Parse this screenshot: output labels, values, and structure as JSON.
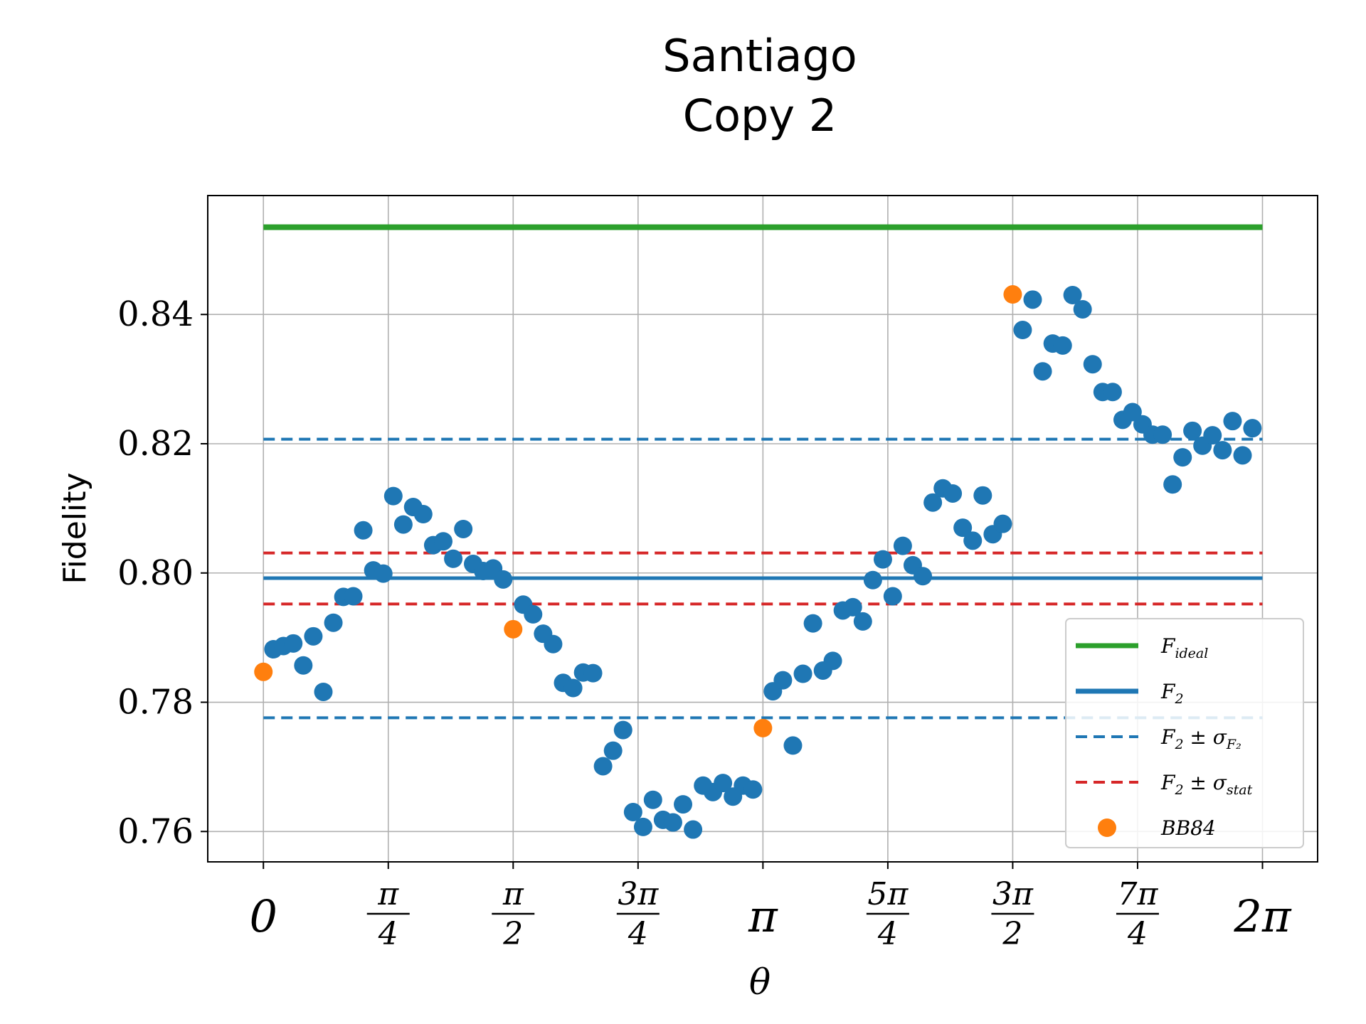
{
  "chart_data": {
    "type": "scatter",
    "title_lines": [
      "Santiago",
      "Copy 2"
    ],
    "xlabel": "θ",
    "ylabel": "Fidelity",
    "xlim": [
      -0.35,
      6.63
    ],
    "ylim": [
      0.7553,
      0.8584
    ],
    "grid": true,
    "legend_position": "lower-right",
    "y_ticks": [
      {
        "value": 0.76,
        "label": "0.76"
      },
      {
        "value": 0.78,
        "label": "0.78"
      },
      {
        "value": 0.8,
        "label": "0.80"
      },
      {
        "value": 0.82,
        "label": "0.82"
      },
      {
        "value": 0.84,
        "label": "0.84"
      }
    ],
    "x_ticks": [
      {
        "value": 0.0,
        "num": "0",
        "den": ""
      },
      {
        "value": 0.7854,
        "num": "π",
        "den": "4"
      },
      {
        "value": 1.5708,
        "num": "π",
        "den": "2"
      },
      {
        "value": 2.3562,
        "num": "3π",
        "den": "4"
      },
      {
        "value": 3.1416,
        "num": "π",
        "den": ""
      },
      {
        "value": 3.927,
        "num": "5π",
        "den": "4"
      },
      {
        "value": 4.7124,
        "num": "3π",
        "den": "2"
      },
      {
        "value": 5.4978,
        "num": "7π",
        "den": "4"
      },
      {
        "value": 6.2832,
        "num": "2π",
        "den": ""
      }
    ],
    "lines": [
      {
        "name": "F_ideal",
        "y": 0.8535,
        "x_range": [
          0,
          6.2832
        ],
        "color": "#2ca02c",
        "style": "solid"
      },
      {
        "name": "F_2",
        "y": 0.7992,
        "x_range": [
          0,
          6.2832
        ],
        "color": "#1f77b4",
        "style": "solid"
      },
      {
        "name": "F_2 ± σ_F2",
        "y": [
          0.8207,
          0.7776
        ],
        "x_range": [
          0,
          6.2832
        ],
        "color": "#1f77b4",
        "style": "dashed"
      },
      {
        "name": "F_2 ± σ_stat",
        "y": [
          0.8031,
          0.7952
        ],
        "x_range": [
          0,
          6.2832
        ],
        "color": "#d62728",
        "style": "dashed"
      }
    ],
    "series": [
      {
        "color": "#1f77b4",
        "points": [
          [
            0.063,
            0.7882
          ],
          [
            0.126,
            0.7887
          ],
          [
            0.188,
            0.7891
          ],
          [
            0.251,
            0.7857
          ],
          [
            0.314,
            0.7902
          ],
          [
            0.377,
            0.7816
          ],
          [
            0.44,
            0.7923
          ],
          [
            0.503,
            0.7963
          ],
          [
            0.565,
            0.7964
          ],
          [
            0.628,
            0.8066
          ],
          [
            0.691,
            0.8004
          ],
          [
            0.754,
            0.7999
          ],
          [
            0.817,
            0.8119
          ],
          [
            0.88,
            0.8075
          ],
          [
            0.942,
            0.8102
          ],
          [
            1.005,
            0.8091
          ],
          [
            1.068,
            0.8043
          ],
          [
            1.131,
            0.8049
          ],
          [
            1.194,
            0.8022
          ],
          [
            1.257,
            0.8068
          ],
          [
            1.319,
            0.8014
          ],
          [
            1.382,
            0.8003
          ],
          [
            1.445,
            0.8007
          ],
          [
            1.508,
            0.799
          ],
          [
            1.634,
            0.7951
          ],
          [
            1.696,
            0.7936
          ],
          [
            1.759,
            0.7906
          ],
          [
            1.822,
            0.789
          ],
          [
            1.885,
            0.783
          ],
          [
            1.948,
            0.7822
          ],
          [
            2.011,
            0.7846
          ],
          [
            2.073,
            0.7845
          ],
          [
            2.136,
            0.7701
          ],
          [
            2.199,
            0.7725
          ],
          [
            2.262,
            0.7757
          ],
          [
            2.325,
            0.763
          ],
          [
            2.388,
            0.7607
          ],
          [
            2.45,
            0.7649
          ],
          [
            2.513,
            0.7618
          ],
          [
            2.576,
            0.7614
          ],
          [
            2.639,
            0.7642
          ],
          [
            2.702,
            0.7603
          ],
          [
            2.765,
            0.7671
          ],
          [
            2.827,
            0.7661
          ],
          [
            2.89,
            0.7675
          ],
          [
            2.953,
            0.7654
          ],
          [
            3.016,
            0.7671
          ],
          [
            3.079,
            0.7665
          ],
          [
            3.204,
            0.7817
          ],
          [
            3.267,
            0.7834
          ],
          [
            3.33,
            0.7733
          ],
          [
            3.393,
            0.7844
          ],
          [
            3.456,
            0.7922
          ],
          [
            3.519,
            0.7849
          ],
          [
            3.581,
            0.7864
          ],
          [
            3.644,
            0.7942
          ],
          [
            3.707,
            0.7947
          ],
          [
            3.77,
            0.7925
          ],
          [
            3.833,
            0.7989
          ],
          [
            3.896,
            0.8021
          ],
          [
            3.958,
            0.7964
          ],
          [
            4.021,
            0.8042
          ],
          [
            4.084,
            0.8012
          ],
          [
            4.147,
            0.7995
          ],
          [
            4.21,
            0.8109
          ],
          [
            4.273,
            0.8131
          ],
          [
            4.335,
            0.8123
          ],
          [
            4.398,
            0.807
          ],
          [
            4.461,
            0.805
          ],
          [
            4.524,
            0.812
          ],
          [
            4.587,
            0.806
          ],
          [
            4.65,
            0.8076
          ],
          [
            4.775,
            0.8376
          ],
          [
            4.838,
            0.8423
          ],
          [
            4.901,
            0.8312
          ],
          [
            4.964,
            0.8355
          ],
          [
            5.027,
            0.8352
          ],
          [
            5.089,
            0.843
          ],
          [
            5.152,
            0.8408
          ],
          [
            5.215,
            0.8323
          ],
          [
            5.278,
            0.828
          ],
          [
            5.341,
            0.828
          ],
          [
            5.404,
            0.8237
          ],
          [
            5.466,
            0.8249
          ],
          [
            5.529,
            0.823
          ],
          [
            5.592,
            0.8214
          ],
          [
            5.655,
            0.8214
          ],
          [
            5.718,
            0.8137
          ],
          [
            5.781,
            0.8179
          ],
          [
            5.843,
            0.822
          ],
          [
            5.906,
            0.8197
          ],
          [
            5.969,
            0.8213
          ],
          [
            6.032,
            0.819
          ],
          [
            6.095,
            0.8235
          ],
          [
            6.158,
            0.8182
          ],
          [
            6.22,
            0.8224
          ]
        ]
      },
      {
        "name": "BB84",
        "color": "#ff7f0e",
        "points": [
          [
            0.0,
            0.7847
          ],
          [
            1.5708,
            0.7913
          ],
          [
            3.1416,
            0.776
          ],
          [
            4.7124,
            0.8431
          ]
        ]
      }
    ],
    "legend": [
      {
        "kind": "solid",
        "color": "#2ca02c",
        "base": "F",
        "sub": "ideal",
        "rest": ""
      },
      {
        "kind": "solid",
        "color": "#1f77b4",
        "base": "F",
        "sub": "2",
        "rest": ""
      },
      {
        "kind": "dashed",
        "color": "#1f77b4",
        "base": "F",
        "sub": "2",
        "rest": " ± σ",
        "sub2": "F₂"
      },
      {
        "kind": "dashed",
        "color": "#d62728",
        "base": "F",
        "sub": "2",
        "rest": " ± σ",
        "sub2": "stat"
      },
      {
        "kind": "dot",
        "color": "#ff7f0e",
        "base": "BB84",
        "sub": "",
        "rest": ""
      }
    ]
  }
}
